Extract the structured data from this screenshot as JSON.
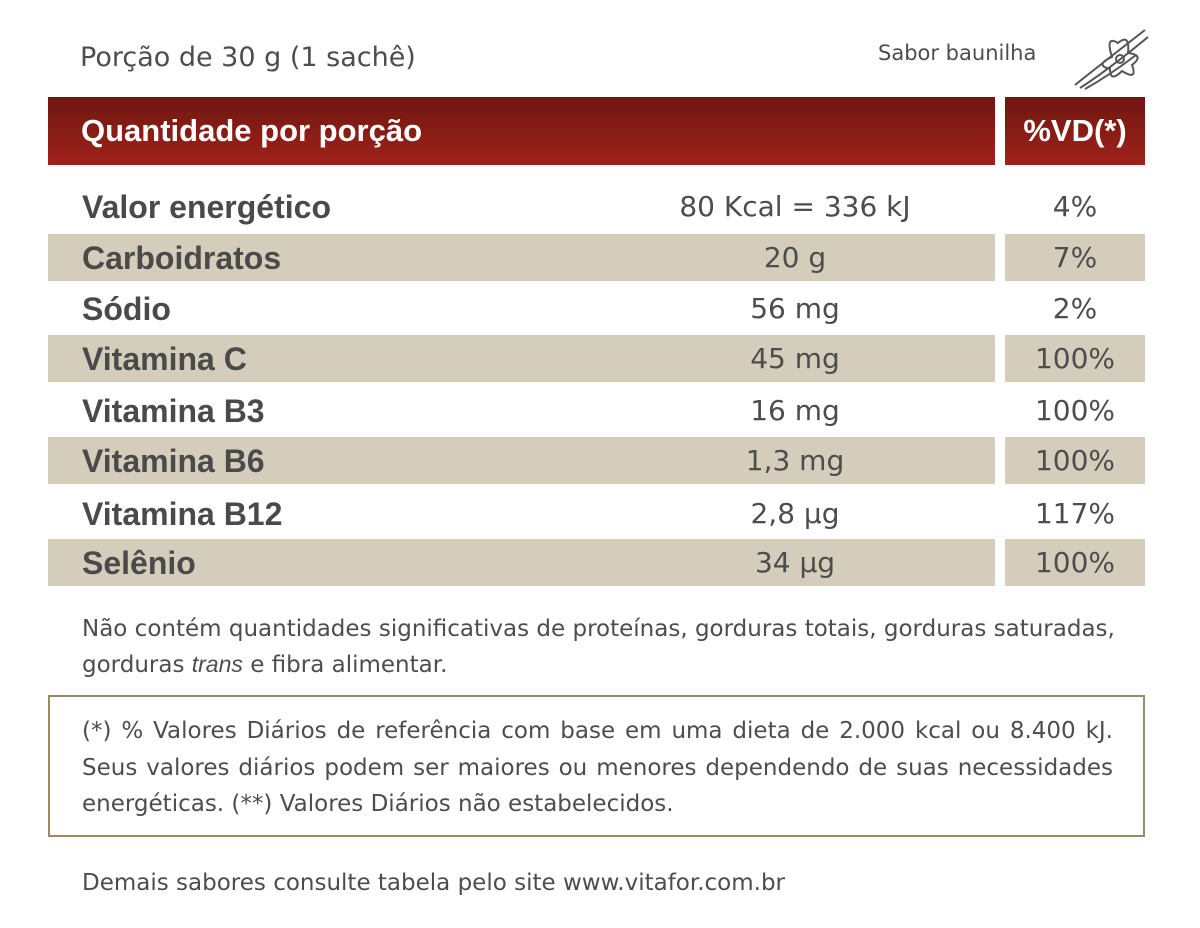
{
  "header": {
    "portion": "Porção de 30 g (1 sachê)",
    "flavor": "Sabor baunilha"
  },
  "table": {
    "header": [
      "Quantidade por porção",
      "%VD(*)"
    ],
    "rows": [
      [
        "Valor energético",
        "80 Kcal = 336 kJ",
        "4%"
      ],
      [
        "Carboidratos",
        "20 g",
        "7%"
      ],
      [
        "Sódio",
        "56 mg",
        "2%"
      ],
      [
        "Vitamina C",
        "45 mg",
        "100%"
      ],
      [
        "Vitamina B3",
        "16 mg",
        "100%"
      ],
      [
        "Vitamina B6",
        "1,3 mg",
        "100%"
      ],
      [
        "Vitamina B12",
        "2,8 µg",
        "117%"
      ],
      [
        "Selênio",
        "34 µg",
        "100%"
      ]
    ]
  },
  "note": {
    "before": "Não contém quantidades significativas de proteínas, gorduras totais, gorduras saturadas, gorduras",
    "italic": "trans",
    "after": "e fibra alimentar."
  },
  "footnote": "(*) % Valores Diários de referência com base em uma dieta de 2.000 kcal ou 8.400 kJ. Seus valores diários podem ser maiores ou menores dependendo de suas necessidades energéticas. (**) Valores Diários não estabelecidos.",
  "footer": "Demais sabores consulte tabela pelo site www.vitafor.com.br"
}
